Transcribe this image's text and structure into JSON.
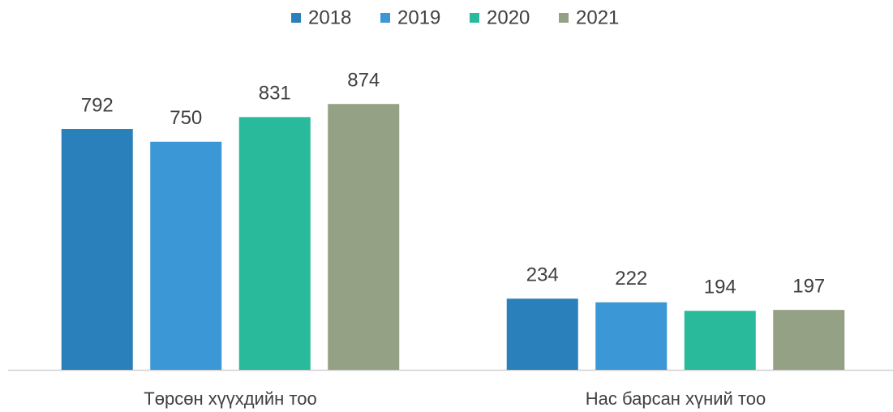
{
  "chart_data": {
    "type": "bar",
    "categories": [
      "Төрсөн хүүхдийн тоо",
      "Нас барсан хүний тоо"
    ],
    "series": [
      {
        "name": "2018",
        "color": "#2980ba",
        "values": [
          792,
          234
        ]
      },
      {
        "name": "2019",
        "color": "#3b97d5",
        "values": [
          750,
          222
        ]
      },
      {
        "name": "2020",
        "color": "#28ba9b",
        "values": [
          831,
          194
        ]
      },
      {
        "name": "2021",
        "color": "#94a184",
        "values": [
          874,
          197
        ]
      }
    ],
    "ylim": [
      0,
      1000
    ],
    "legend": "top"
  }
}
